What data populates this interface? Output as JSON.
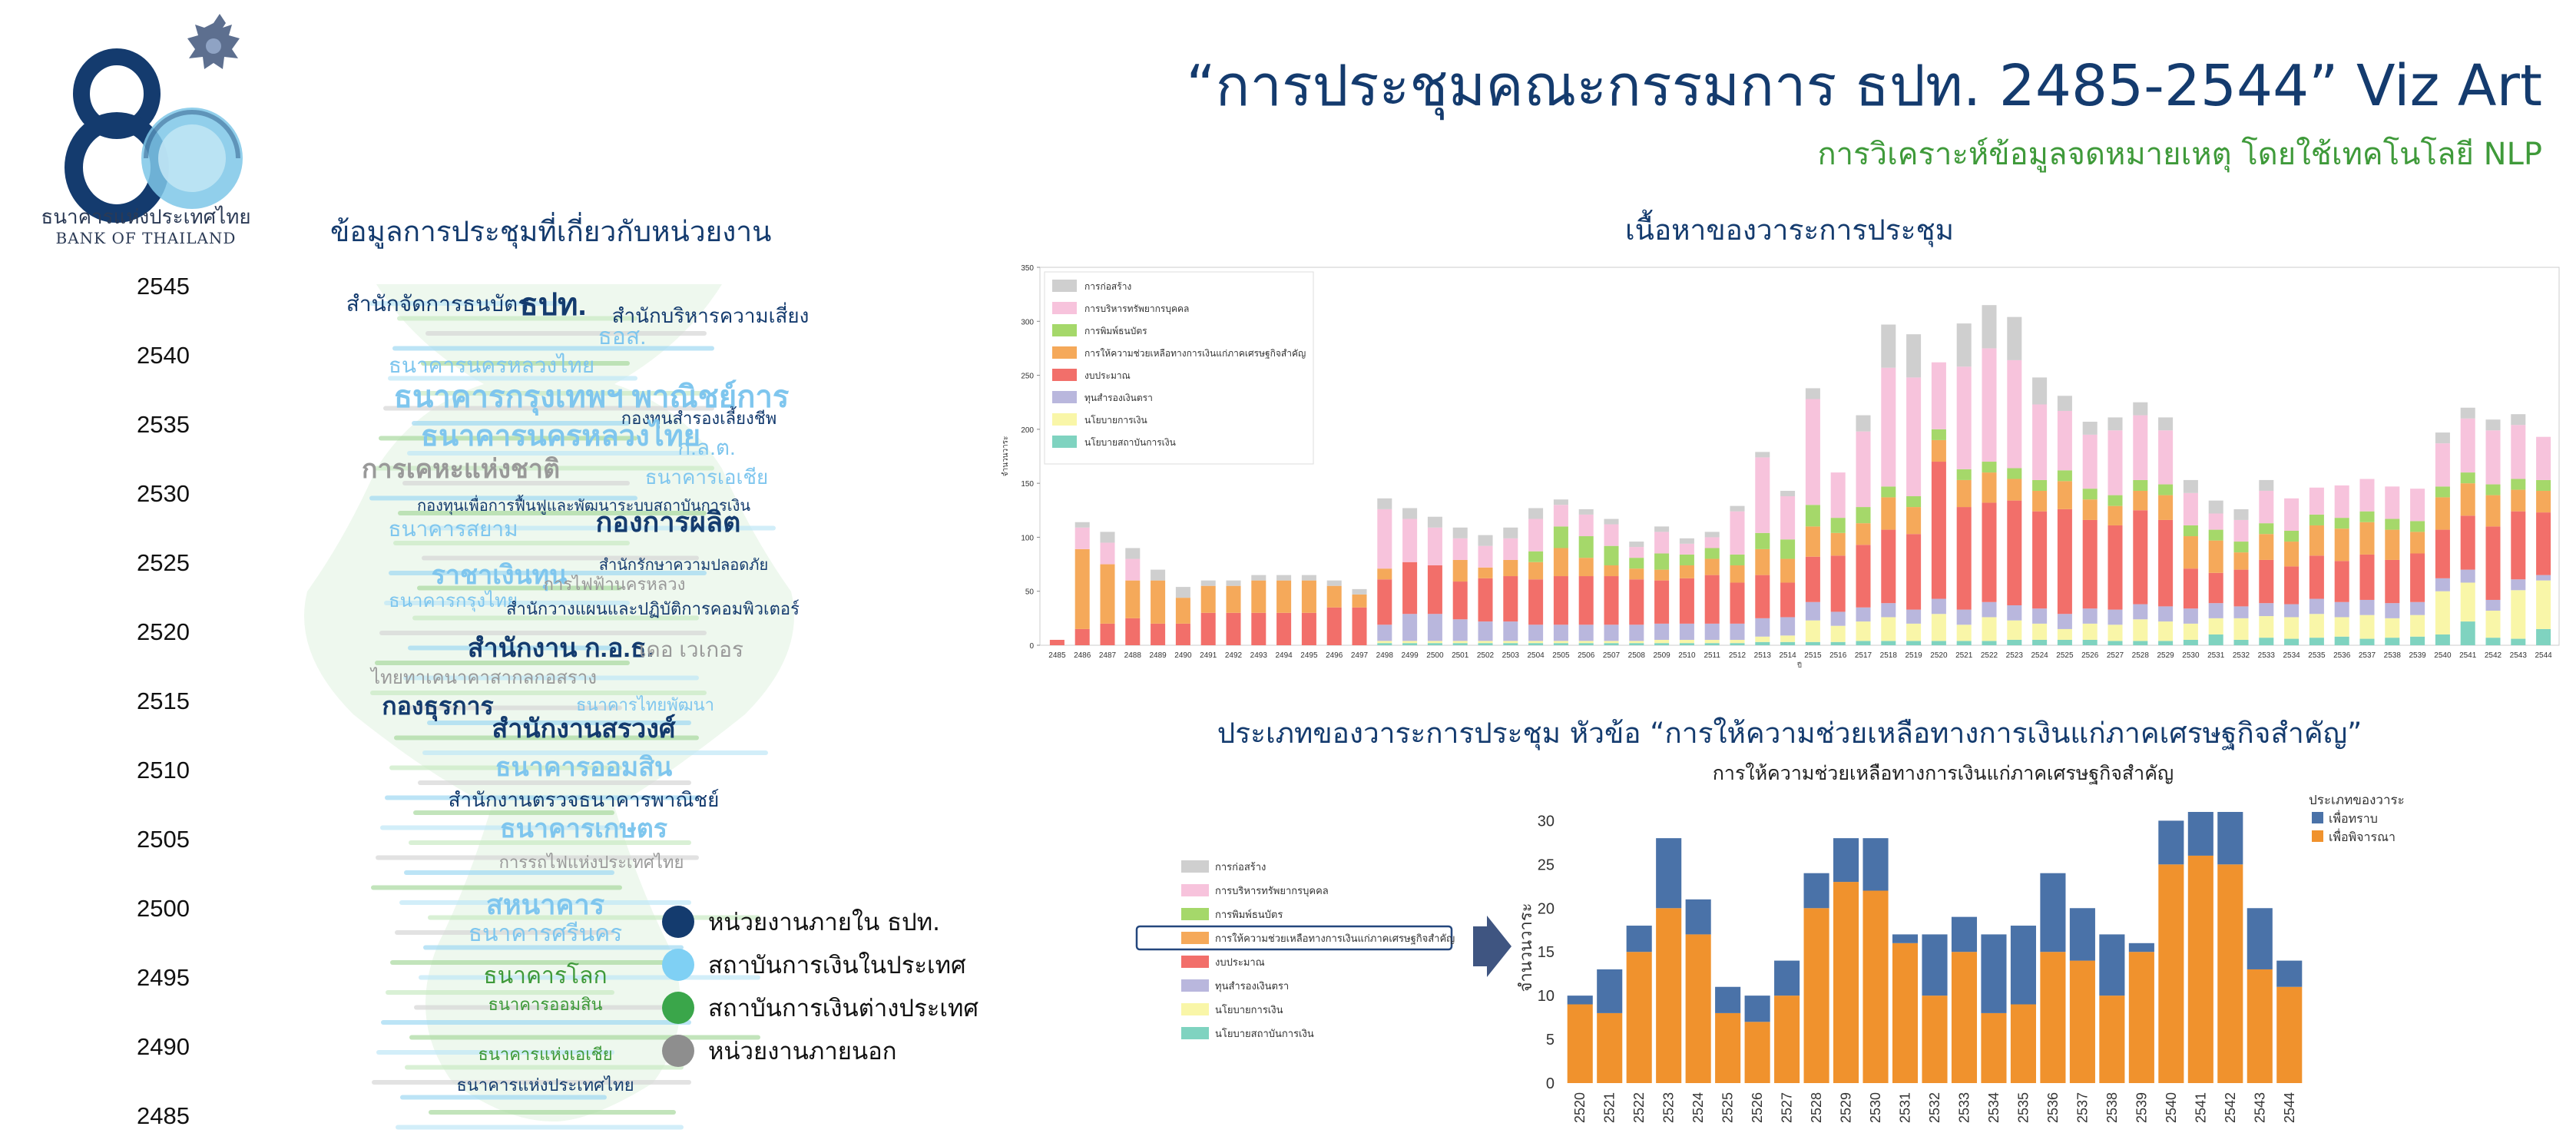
{
  "header": {
    "bank_name_th": "ธนาคารแห่งประเทศไทย",
    "bank_name_en": "BANK OF THAILAND",
    "title": "“การประชุมคณะกรรมการ ธปท. 2485-2544” Viz Art",
    "subtitle": "การวิเคราะห์ข้อมูลจดหมายเหตุ โดยใช้เทคโนโลยี NLP"
  },
  "colors": {
    "navy": "#143b6e",
    "green_title": "#3f9a3a",
    "blue_bar": "#4a72a8",
    "orange_bar": "#f0922d"
  },
  "wordcloud": {
    "title": "ข้อมูลการประชุมที่เกี่ยวกับหน่วยงาน",
    "years": [
      "2545",
      "2540",
      "2535",
      "2530",
      "2525",
      "2520",
      "2515",
      "2510",
      "2505",
      "2500",
      "2495",
      "2490",
      "2485"
    ],
    "words": [
      {
        "t": "สำนักจัดการธนบัตร",
        "c": "#143b6e"
      },
      {
        "t": "ธปท.",
        "c": "#143b6e"
      },
      {
        "t": "ธอส.",
        "c": "#7fc6ee"
      },
      {
        "t": "สำนักบริหารความเสี่ยง",
        "c": "#143b6e"
      },
      {
        "t": "ธนาคารนครหลวงไทย",
        "c": "#7fc6ee"
      },
      {
        "t": "ธนาคารกรุงเทพฯ พาณิชย์การ",
        "c": "#7fc6ee"
      },
      {
        "t": "กองทุนสำรองเลี้ยงชีพ",
        "c": "#143b6e"
      },
      {
        "t": "ธนาคารนครหลวงไทย",
        "c": "#7fc6ee"
      },
      {
        "t": "ก.ล.ต.",
        "c": "#7fc6ee"
      },
      {
        "t": "การเคหะแห่งชาติ",
        "c": "#999999"
      },
      {
        "t": "ธนาคารเอเชีย",
        "c": "#7fc6ee"
      },
      {
        "t": "กองทุนเพื่อการฟื้นฟูและพัฒนาระบบสถาบันการเงิน",
        "c": "#143b6e"
      },
      {
        "t": "ธนาคารสยาม",
        "c": "#7fc6ee"
      },
      {
        "t": "กองการผลิต",
        "c": "#143b6e"
      },
      {
        "t": "ราชาเงินทุน",
        "c": "#7fc6ee"
      },
      {
        "t": "สำนักรักษาความปลอดภัย",
        "c": "#143b6e"
      },
      {
        "t": "การไฟฟ้านครหลวง",
        "c": "#999999"
      },
      {
        "t": "ธนาคารกรุงไทย",
        "c": "#7fc6ee"
      },
      {
        "t": "สำนักวางแผนและปฏิบัติการคอมพิวเตอร์",
        "c": "#143b6e"
      },
      {
        "t": "สำนักงาน ก.อ.ธ.",
        "c": "#143b6e"
      },
      {
        "t": "เดอ เวเกอร",
        "c": "#999999"
      },
      {
        "t": "ไทยทาเคนาคาสากลกอสราง",
        "c": "#999999"
      },
      {
        "t": "กองธุรการ",
        "c": "#143b6e"
      },
      {
        "t": "ธนาคารไทยพัฒนา",
        "c": "#7fc6ee"
      },
      {
        "t": "สำนักงานสรวงศ์",
        "c": "#143b6e"
      },
      {
        "t": "ธนาคารออมสิน",
        "c": "#7fc6ee"
      },
      {
        "t": "สำนักงานตรวจธนาคารพาณิชย์",
        "c": "#143b6e"
      },
      {
        "t": "ธนาคารเกษตร",
        "c": "#7fc6ee"
      },
      {
        "t": "การรถไฟแห่งประเทศไทย",
        "c": "#999999"
      },
      {
        "t": "สหนาคาร",
        "c": "#7fc6ee"
      },
      {
        "t": "ธนาคารศรีนคร",
        "c": "#7fc6ee"
      },
      {
        "t": "ธนาคารโลก",
        "c": "#3f9a3a"
      },
      {
        "t": "ธนาคารออมสิน",
        "c": "#3f9a3a"
      },
      {
        "t": "ธนาคารแห่งเอเชีย",
        "c": "#3f9a3a"
      },
      {
        "t": "ธนาคารแห่งประเทศไทย",
        "c": "#143b6e"
      }
    ],
    "legend": [
      {
        "label": "หน่วยงานภายใน ธปท.",
        "color": "#143b6e"
      },
      {
        "label": "สถาบันการเงินในประเทศ",
        "color": "#7fd0f4"
      },
      {
        "label": "สถาบันการเงินต่างประเทศ",
        "color": "#3aa64a"
      },
      {
        "label": "หน่วยงานภายนอก",
        "color": "#8e8e8e"
      }
    ]
  },
  "top_chart_title": "เนื้อหาของวาระการประชุม",
  "bottom_chart_title": "ประเภทของวาระการประชุม หัวข้อ “การให้ความช่วยเหลือทางการเงินแก่ภาคเศรษฐกิจสำคัญ”",
  "category_legend": [
    {
      "label": "การก่อสร้าง",
      "color": "#cfcfcf"
    },
    {
      "label": "การบริหารทรัพยากรบุคคล",
      "color": "#f7c3dc"
    },
    {
      "label": "การพิมพ์ธนบัตร",
      "color": "#a5d86a"
    },
    {
      "label": "การให้ความช่วยเหลือทางการเงินแก่ภาคเศรษฐกิจสำคัญ",
      "color": "#f5a95a"
    },
    {
      "label": "งบประมาณ",
      "color": "#f26f6a"
    },
    {
      "label": "ทุนสำรองเงินตรา",
      "color": "#b9b7dd"
    },
    {
      "label": "นโยบายการเงิน",
      "color": "#f9f6a8"
    },
    {
      "label": "นโยบายสถาบันการเงิน",
      "color": "#7fd3c0"
    }
  ],
  "chart_data": [
    {
      "type": "bar",
      "stacked": true,
      "ylabel": "จำนวนวาระ",
      "xlabel": "ปี",
      "ylim": [
        0,
        350
      ],
      "yticks": [
        0,
        50,
        100,
        150,
        200,
        250,
        300,
        350
      ],
      "x": [
        "2485",
        "2486",
        "2487",
        "2488",
        "2489",
        "2490",
        "2491",
        "2492",
        "2493",
        "2494",
        "2495",
        "2496",
        "2497",
        "2498",
        "2499",
        "2500",
        "2501",
        "2502",
        "2503",
        "2504",
        "2505",
        "2506",
        "2507",
        "2508",
        "2509",
        "2510",
        "2511",
        "2512",
        "2513",
        "2514",
        "2515",
        "2516",
        "2517",
        "2518",
        "2519",
        "2520",
        "2521",
        "2522",
        "2523",
        "2524",
        "2525",
        "2526",
        "2527",
        "2528",
        "2529",
        "2530",
        "2531",
        "2532",
        "2533",
        "2534",
        "2535",
        "2536",
        "2537",
        "2538",
        "2539",
        "2540",
        "2541",
        "2542",
        "2543",
        "2544"
      ],
      "series": [
        {
          "name": "นโยบายสถาบันการเงิน",
          "values": [
            0,
            0,
            0,
            0,
            0,
            0,
            0,
            0,
            0,
            0,
            0,
            0,
            0,
            2,
            2,
            2,
            2,
            2,
            2,
            2,
            2,
            2,
            2,
            2,
            2,
            2,
            2,
            2,
            3,
            3,
            3,
            3,
            4,
            4,
            4,
            4,
            4,
            4,
            5,
            5,
            5,
            5,
            4,
            4,
            4,
            5,
            10,
            5,
            7,
            6,
            7,
            8,
            6,
            7,
            8,
            10,
            22,
            7,
            6,
            15
          ]
        },
        {
          "name": "นโยบายการเงิน",
          "values": [
            0,
            0,
            0,
            0,
            0,
            0,
            0,
            0,
            0,
            0,
            0,
            0,
            0,
            2,
            2,
            2,
            2,
            2,
            2,
            2,
            2,
            2,
            2,
            2,
            3,
            3,
            3,
            3,
            5,
            6,
            20,
            15,
            18,
            22,
            16,
            25,
            15,
            22,
            18,
            15,
            10,
            15,
            15,
            20,
            18,
            15,
            15,
            20,
            20,
            20,
            22,
            18,
            22,
            18,
            20,
            40,
            36,
            25,
            45,
            45
          ]
        },
        {
          "name": "ทุนสำรองเงินตรา",
          "values": [
            0,
            0,
            0,
            0,
            0,
            0,
            0,
            0,
            0,
            0,
            0,
            0,
            0,
            15,
            25,
            25,
            20,
            18,
            18,
            15,
            15,
            15,
            15,
            15,
            15,
            15,
            15,
            15,
            17,
            17,
            17,
            13,
            13,
            13,
            13,
            14,
            14,
            14,
            14,
            14,
            14,
            14,
            14,
            14,
            14,
            14,
            14,
            11,
            12,
            12,
            14,
            14,
            14,
            14,
            12,
            12,
            12,
            10,
            10,
            5
          ]
        },
        {
          "name": "งบประมาณ",
          "values": [
            5,
            15,
            20,
            25,
            20,
            20,
            30,
            30,
            30,
            30,
            30,
            35,
            35,
            42,
            48,
            45,
            35,
            40,
            42,
            42,
            45,
            45,
            45,
            42,
            40,
            42,
            45,
            38,
            40,
            32,
            42,
            52,
            58,
            68,
            70,
            127,
            95,
            92,
            97,
            90,
            97,
            82,
            78,
            87,
            80,
            37,
            28,
            34,
            40,
            35,
            40,
            38,
            42,
            40,
            45,
            45,
            50,
            68,
            63,
            58
          ]
        },
        {
          "name": "การให้ความช่วยเหลือทางการเงินแก่ภาคเศรษฐกิจสำคัญ",
          "values": [
            0,
            74,
            55,
            35,
            40,
            24,
            25,
            25,
            30,
            30,
            30,
            20,
            12,
            10,
            0,
            0,
            20,
            10,
            15,
            16,
            26,
            17,
            10,
            10,
            10,
            12,
            15,
            16,
            24,
            22,
            28,
            21,
            20,
            30,
            25,
            20,
            25,
            28,
            20,
            19,
            26,
            19,
            18,
            18,
            23,
            30,
            30,
            16,
            24,
            23,
            28,
            30,
            30,
            28,
            20,
            30,
            30,
            29,
            20,
            20
          ]
        },
        {
          "name": "การพิมพ์ธนบัตร",
          "values": [
            0,
            0,
            0,
            0,
            0,
            0,
            0,
            0,
            0,
            0,
            0,
            0,
            0,
            0,
            0,
            0,
            0,
            0,
            0,
            10,
            20,
            20,
            18,
            10,
            15,
            10,
            10,
            10,
            15,
            18,
            20,
            14,
            15,
            10,
            10,
            10,
            10,
            10,
            10,
            10,
            10,
            10,
            10,
            10,
            10,
            10,
            10,
            10,
            10,
            10,
            10,
            10,
            10,
            10,
            10,
            10,
            10,
            10,
            10,
            10
          ]
        },
        {
          "name": "การบริหารทรัพยากรบุคคล",
          "values": [
            0,
            20,
            20,
            20,
            0,
            0,
            0,
            0,
            0,
            0,
            0,
            0,
            0,
            55,
            40,
            35,
            20,
            20,
            20,
            30,
            20,
            20,
            20,
            10,
            20,
            10,
            10,
            40,
            70,
            40,
            98,
            42,
            70,
            110,
            110,
            62,
            95,
            105,
            100,
            70,
            55,
            50,
            60,
            60,
            50,
            30,
            15,
            20,
            30,
            30,
            25,
            30,
            30,
            30,
            30,
            40,
            50,
            50,
            50,
            40
          ]
        },
        {
          "name": "การก่อสร้าง",
          "values": [
            0,
            5,
            10,
            10,
            10,
            10,
            5,
            5,
            5,
            5,
            5,
            5,
            5,
            10,
            10,
            10,
            10,
            10,
            10,
            10,
            5,
            5,
            5,
            5,
            5,
            5,
            5,
            5,
            5,
            5,
            10,
            0,
            15,
            40,
            40,
            0,
            40,
            40,
            40,
            25,
            14,
            12,
            12,
            12,
            12,
            12,
            12,
            10,
            10,
            0,
            0,
            0,
            0,
            0,
            0,
            10,
            10,
            10,
            10,
            0
          ]
        }
      ]
    },
    {
      "type": "bar",
      "stacked": true,
      "title": "การให้ความช่วยเหลือทางการเงินแก่ภาคเศรษฐกิจสำคัญ",
      "ylabel": "จำนวนวาระ",
      "ylim": [
        0,
        31
      ],
      "yticks": [
        0,
        5,
        10,
        15,
        20,
        25,
        30
      ],
      "legend_title": "ประเภทของวาระ",
      "legend_position": "top-right",
      "x": [
        "2520",
        "2521",
        "2522",
        "2523",
        "2524",
        "2525",
        "2526",
        "2527",
        "2528",
        "2529",
        "2530",
        "2531",
        "2532",
        "2533",
        "2534",
        "2535",
        "2536",
        "2537",
        "2538",
        "2539",
        "2540",
        "2541",
        "2542",
        "2543",
        "2544"
      ],
      "series": [
        {
          "name": "เพื่อพิจารณา",
          "values": [
            9,
            8,
            15,
            20,
            17,
            8,
            7,
            10,
            20,
            23,
            22,
            16,
            10,
            15,
            8,
            9,
            15,
            14,
            10,
            15,
            25,
            26,
            25,
            13,
            11
          ]
        },
        {
          "name": "เพื่อทราบ",
          "values": [
            1,
            5,
            3,
            8,
            4,
            3,
            3,
            4,
            4,
            5,
            6,
            1,
            7,
            4,
            9,
            9,
            9,
            6,
            7,
            1,
            5,
            5,
            6,
            7,
            3
          ]
        }
      ]
    }
  ]
}
